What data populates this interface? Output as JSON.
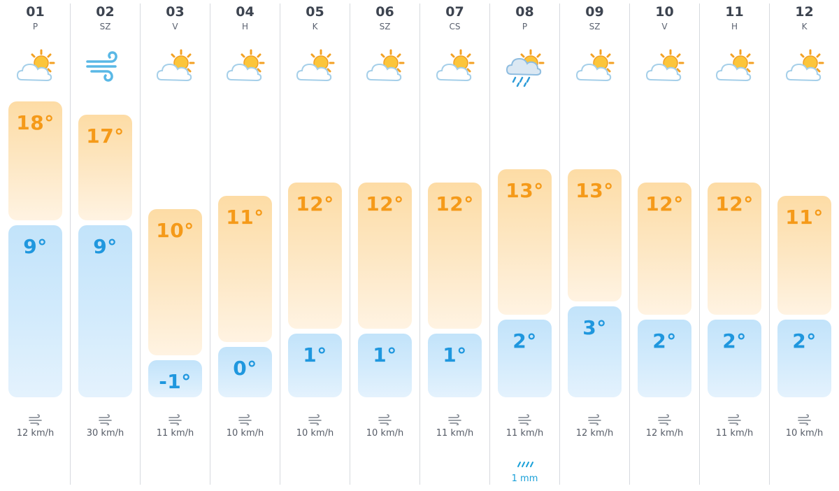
{
  "colors": {
    "max_temp": "#f59a19",
    "min_temp": "#1f97de",
    "max_bar": "#fde3b8",
    "min_bar": "#cde8fb",
    "precip": "#1aa0d8"
  },
  "days": [
    {
      "day": "01",
      "weekday": "P",
      "icon": "sun-behind-cloud-icon",
      "max": "18°",
      "min": "9°",
      "max_value": 18,
      "min_value": 9,
      "wind": "12 km/h",
      "precip": ""
    },
    {
      "day": "02",
      "weekday": "SZ",
      "icon": "wind-icon",
      "max": "17°",
      "min": "9°",
      "max_value": 17,
      "min_value": 9,
      "wind": "30 km/h",
      "precip": ""
    },
    {
      "day": "03",
      "weekday": "V",
      "icon": "sun-behind-cloud-icon",
      "max": "10°",
      "min": "-1°",
      "max_value": 10,
      "min_value": -1,
      "wind": "11 km/h",
      "precip": ""
    },
    {
      "day": "04",
      "weekday": "H",
      "icon": "sun-behind-cloud-icon",
      "max": "11°",
      "min": "0°",
      "max_value": 11,
      "min_value": 0,
      "wind": "10 km/h",
      "precip": ""
    },
    {
      "day": "05",
      "weekday": "K",
      "icon": "sun-behind-cloud-icon",
      "max": "12°",
      "min": "1°",
      "max_value": 12,
      "min_value": 1,
      "wind": "10 km/h",
      "precip": ""
    },
    {
      "day": "06",
      "weekday": "SZ",
      "icon": "sun-behind-cloud-icon",
      "max": "12°",
      "min": "1°",
      "max_value": 12,
      "min_value": 1,
      "wind": "10 km/h",
      "precip": ""
    },
    {
      "day": "07",
      "weekday": "CS",
      "icon": "sun-behind-cloud-icon",
      "max": "12°",
      "min": "1°",
      "max_value": 12,
      "min_value": 1,
      "wind": "11 km/h",
      "precip": ""
    },
    {
      "day": "08",
      "weekday": "P",
      "icon": "sun-rain-cloud-icon",
      "max": "13°",
      "min": "2°",
      "max_value": 13,
      "min_value": 2,
      "wind": "11 km/h",
      "precip": "1 mm"
    },
    {
      "day": "09",
      "weekday": "SZ",
      "icon": "sun-behind-cloud-icon",
      "max": "13°",
      "min": "3°",
      "max_value": 13,
      "min_value": 3,
      "wind": "12 km/h",
      "precip": ""
    },
    {
      "day": "10",
      "weekday": "V",
      "icon": "sun-behind-cloud-icon",
      "max": "12°",
      "min": "2°",
      "max_value": 12,
      "min_value": 2,
      "wind": "12 km/h",
      "precip": ""
    },
    {
      "day": "11",
      "weekday": "H",
      "icon": "sun-behind-cloud-icon",
      "max": "12°",
      "min": "2°",
      "max_value": 12,
      "min_value": 2,
      "wind": "11 km/h",
      "precip": ""
    },
    {
      "day": "12",
      "weekday": "K",
      "icon": "sun-behind-cloud-icon",
      "max": "11°",
      "min": "2°",
      "max_value": 11,
      "min_value": 2,
      "wind": "10 km/h",
      "precip": ""
    }
  ]
}
